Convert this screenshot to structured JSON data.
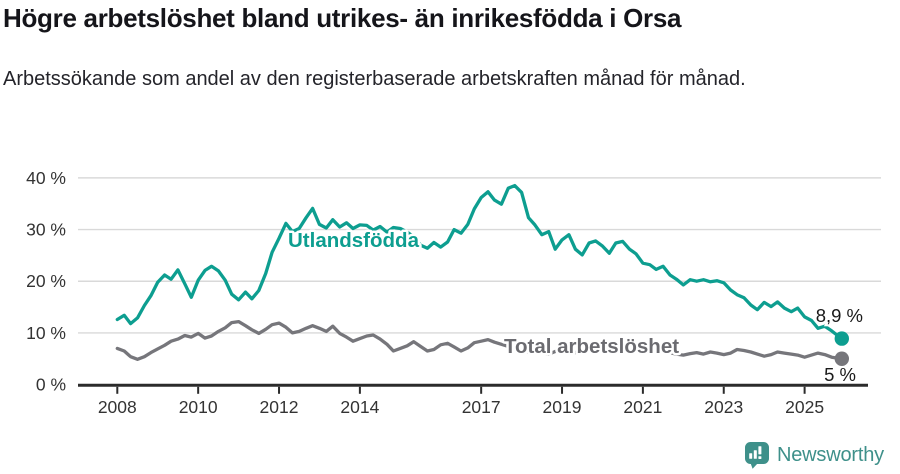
{
  "page": {
    "title": "Högre arbetslöshet bland utrikes- än inrikesfödda i Orsa",
    "subtitle": "Arbetssökande som andel av den registerbaserade arbetskraften månad för månad."
  },
  "branding": {
    "logo_text": "Newsworthy",
    "logo_icon": "speech-bubble-bar-chart-icon",
    "logo_color": "#3e908a"
  },
  "colors": {
    "background": "#ffffff",
    "title_text": "#15151a",
    "subtitle_text": "#24242a",
    "gridline": "#d9d9d9",
    "axis": "#2b2b2b",
    "tick_label": "#333333",
    "end_value_label": "#1a1a1a",
    "series_utlandsfodda": "#0d9e90",
    "series_total": "#76767b",
    "series_total_label": "#6b6b70"
  },
  "chart_data": {
    "type": "line",
    "grid": "horizontal",
    "legend_position": "inline-labels",
    "y_ticks": [
      0,
      10,
      20,
      30,
      40
    ],
    "y_tick_suffix": " %",
    "ylim": [
      0,
      42
    ],
    "x_ticks": [
      2008,
      2010,
      2012,
      2014,
      2017,
      2019,
      2021,
      2023,
      2025
    ],
    "x_tick_labels": [
      "2008",
      "2010",
      "2012",
      "2014",
      "2017",
      "2019",
      "2021",
      "2023",
      "2025"
    ],
    "xlim": [
      2007.7,
      2026.3
    ],
    "x": [
      2008,
      2008.17,
      2008.33,
      2008.5,
      2008.67,
      2008.83,
      2009,
      2009.17,
      2009.33,
      2009.5,
      2009.67,
      2009.83,
      2010,
      2010.17,
      2010.33,
      2010.5,
      2010.67,
      2010.83,
      2011,
      2011.17,
      2011.33,
      2011.5,
      2011.67,
      2011.83,
      2012,
      2012.17,
      2012.33,
      2012.5,
      2012.67,
      2012.83,
      2013,
      2013.17,
      2013.33,
      2013.5,
      2013.67,
      2013.83,
      2014,
      2014.17,
      2014.33,
      2014.5,
      2014.67,
      2014.83,
      2015,
      2015.17,
      2015.33,
      2015.5,
      2015.67,
      2015.83,
      2016,
      2016.17,
      2016.33,
      2016.5,
      2016.67,
      2016.83,
      2017,
      2017.17,
      2017.33,
      2017.5,
      2017.67,
      2017.83,
      2018,
      2018.17,
      2018.33,
      2018.5,
      2018.67,
      2018.83,
      2019,
      2019.17,
      2019.33,
      2019.5,
      2019.67,
      2019.83,
      2020,
      2020.17,
      2020.33,
      2020.5,
      2020.67,
      2020.83,
      2021,
      2021.17,
      2021.33,
      2021.5,
      2021.67,
      2021.83,
      2022,
      2022.17,
      2022.33,
      2022.5,
      2022.67,
      2022.83,
      2023,
      2023.17,
      2023.33,
      2023.5,
      2023.67,
      2023.83,
      2024,
      2024.17,
      2024.33,
      2024.5,
      2024.67,
      2024.83,
      2025,
      2025.17,
      2025.33,
      2025.5,
      2025.67,
      2025.83,
      2025.92
    ],
    "series": [
      {
        "name": "Utlandsfödda",
        "color": "#0d9e90",
        "end_label": "8,9 %",
        "end_value": 8.9,
        "values": [
          12.6,
          13.4,
          11.8,
          12.9,
          15.3,
          17.2,
          19.8,
          21.2,
          20.4,
          22.2,
          19.5,
          16.9,
          20.2,
          22.1,
          22.9,
          22.0,
          20.2,
          17.5,
          16.4,
          17.9,
          16.6,
          18.2,
          21.5,
          25.6,
          28.3,
          31.2,
          29.6,
          30.2,
          32.3,
          34.1,
          31.0,
          30.3,
          31.9,
          30.5,
          31.3,
          30.2,
          30.9,
          30.8,
          29.9,
          30.6,
          29.5,
          30.4,
          30.2,
          29.5,
          28.6,
          27.0,
          26.4,
          27.5,
          26.6,
          27.6,
          30.0,
          29.3,
          31.0,
          34.0,
          36.2,
          37.3,
          35.7,
          34.9,
          38.0,
          38.5,
          37.2,
          32.3,
          30.9,
          29.0,
          29.6,
          26.2,
          28.0,
          29.0,
          26.2,
          25.1,
          27.4,
          27.8,
          26.8,
          25.4,
          27.4,
          27.7,
          26.2,
          25.3,
          23.5,
          23.2,
          22.3,
          22.9,
          21.2,
          20.4,
          19.3,
          20.3,
          20.0,
          20.3,
          19.9,
          20.1,
          19.7,
          18.3,
          17.4,
          16.8,
          15.4,
          14.5,
          15.9,
          15.1,
          16.0,
          14.8,
          14.1,
          14.8,
          13.1,
          12.4,
          10.9,
          11.3,
          10.4,
          9.4,
          8.9
        ]
      },
      {
        "name": "Total arbetslöshet",
        "color": "#76767b",
        "end_label": "5 %",
        "end_value": 5.0,
        "values": [
          7.0,
          6.5,
          5.4,
          4.9,
          5.4,
          6.2,
          6.9,
          7.6,
          8.4,
          8.8,
          9.5,
          9.2,
          9.9,
          9.0,
          9.4,
          10.3,
          11.0,
          12.0,
          12.2,
          11.4,
          10.6,
          9.9,
          10.7,
          11.6,
          11.9,
          11.1,
          10.0,
          10.3,
          10.9,
          11.4,
          10.9,
          10.3,
          11.3,
          9.9,
          9.2,
          8.4,
          8.9,
          9.4,
          9.6,
          8.8,
          7.8,
          6.5,
          7.0,
          7.5,
          8.3,
          7.4,
          6.5,
          6.8,
          7.7,
          8.0,
          7.3,
          6.5,
          7.1,
          8.1,
          8.4,
          8.7,
          8.2,
          7.8,
          7.4,
          7.0,
          6.6,
          6.3,
          6.7,
          6.2,
          5.9,
          6.4,
          6.8,
          6.5,
          6.2,
          6.6,
          7.0,
          7.3,
          7.2,
          7.6,
          8.0,
          7.8,
          7.4,
          7.1,
          6.8,
          6.6,
          6.3,
          6.5,
          6.2,
          5.9,
          5.7,
          6.0,
          6.2,
          5.9,
          6.3,
          6.1,
          5.8,
          6.1,
          6.8,
          6.6,
          6.3,
          5.9,
          5.5,
          5.8,
          6.3,
          6.1,
          5.9,
          5.7,
          5.3,
          5.7,
          6.1,
          5.8,
          5.3,
          5.1,
          5.0
        ]
      }
    ]
  }
}
